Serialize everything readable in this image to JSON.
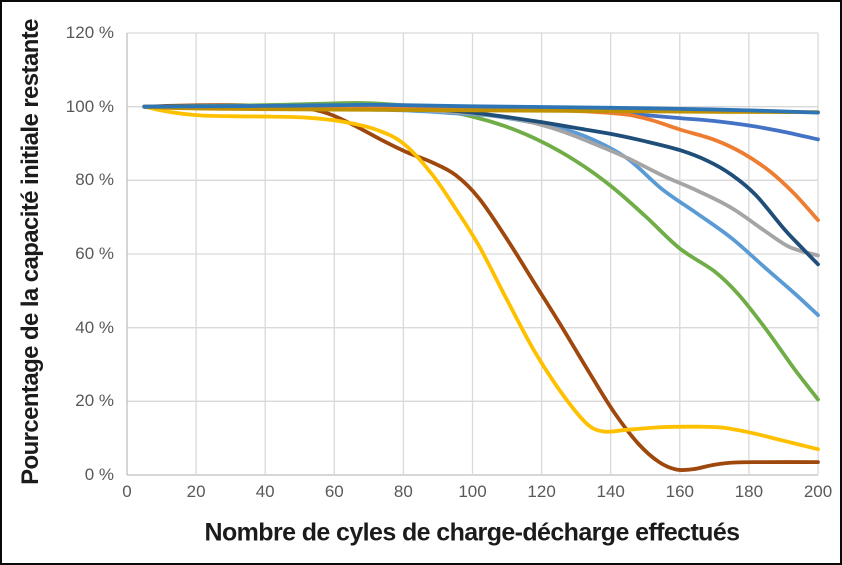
{
  "figure": {
    "x_axis_title": "Nombre de cyles de charge-décharge effectués",
    "y_axis_title": "Pourcentage de la capacité initiale restante"
  },
  "style": {
    "background": "#ffffff",
    "outer_border_color": "#0a0a0a",
    "grid_color": "#d9d9d9",
    "axis_line_color": "#bfbfbf",
    "tick_label_color": "#595959",
    "axis_title_color": "#1b1b1b"
  },
  "chart_data": {
    "type": "line",
    "title": "",
    "xlabel": "Nombre de cyles de charge-décharge effectués",
    "ylabel": "Pourcentage de la capacité initiale restante",
    "xlim": [
      0,
      200
    ],
    "ylim": [
      0,
      120
    ],
    "grid": true,
    "legend_position": "none",
    "x_ticks": [
      0,
      20,
      40,
      60,
      80,
      100,
      120,
      140,
      160,
      180,
      200
    ],
    "x_tick_labels": [
      "0",
      "20",
      "40",
      "60",
      "80",
      "100",
      "120",
      "140",
      "160",
      "180",
      "200"
    ],
    "y_ticks": [
      0,
      20,
      40,
      60,
      80,
      100,
      120
    ],
    "y_tick_labels": [
      "0 %",
      "20 %",
      "40 %",
      "60 %",
      "80 %",
      "100 %",
      "120 %"
    ],
    "line_width": 3.8,
    "series": [
      {
        "name": "brown",
        "color": "#9E480E",
        "points": [
          [
            5,
            100
          ],
          [
            15,
            100.3
          ],
          [
            30,
            100.4
          ],
          [
            42,
            100.2
          ],
          [
            50,
            99.8
          ],
          [
            58,
            98.2
          ],
          [
            66,
            94.8
          ],
          [
            74,
            90.8
          ],
          [
            81,
            87.6
          ],
          [
            88,
            85.0
          ],
          [
            95,
            81.5
          ],
          [
            102,
            75.0
          ],
          [
            110,
            64.0
          ],
          [
            118,
            52.0
          ],
          [
            126,
            40.0
          ],
          [
            134,
            27.5
          ],
          [
            141,
            17.0
          ],
          [
            148,
            8.5
          ],
          [
            154,
            3.5
          ],
          [
            159,
            1.5
          ],
          [
            164,
            1.6
          ],
          [
            170,
            2.8
          ],
          [
            176,
            3.4
          ],
          [
            185,
            3.5
          ],
          [
            200,
            3.5
          ]
        ]
      },
      {
        "name": "yellow",
        "color": "#FFC000",
        "points": [
          [
            5,
            100
          ],
          [
            12,
            98.6
          ],
          [
            20,
            97.7
          ],
          [
            30,
            97.4
          ],
          [
            42,
            97.3
          ],
          [
            52,
            97.0
          ],
          [
            62,
            96.0
          ],
          [
            72,
            93.8
          ],
          [
            80,
            90.0
          ],
          [
            88,
            82.0
          ],
          [
            95,
            72.5
          ],
          [
            102,
            62.0
          ],
          [
            110,
            47.5
          ],
          [
            118,
            33.5
          ],
          [
            126,
            22.0
          ],
          [
            133,
            14.0
          ],
          [
            138,
            11.8
          ],
          [
            145,
            12.3
          ],
          [
            155,
            13.0
          ],
          [
            165,
            13.1
          ],
          [
            172,
            12.9
          ],
          [
            180,
            11.6
          ],
          [
            190,
            9.3
          ],
          [
            200,
            7.0
          ]
        ]
      },
      {
        "name": "green",
        "color": "#70AD47",
        "points": [
          [
            5,
            100
          ],
          [
            25,
            100.2
          ],
          [
            45,
            100.5
          ],
          [
            60,
            100.9
          ],
          [
            68,
            101.0
          ],
          [
            78,
            100.5
          ],
          [
            88,
            99.5
          ],
          [
            100,
            97.3
          ],
          [
            110,
            94.5
          ],
          [
            120,
            90.5
          ],
          [
            130,
            85.2
          ],
          [
            140,
            78.5
          ],
          [
            150,
            70.3
          ],
          [
            160,
            61.5
          ],
          [
            170,
            55.3
          ],
          [
            177,
            49.0
          ],
          [
            185,
            39.5
          ],
          [
            193,
            29.0
          ],
          [
            200,
            20.5
          ]
        ]
      },
      {
        "name": "light-blue",
        "color": "#5B9BD5",
        "points": [
          [
            5,
            100
          ],
          [
            30,
            99.8
          ],
          [
            60,
            99.4
          ],
          [
            80,
            99.0
          ],
          [
            95,
            98.2
          ],
          [
            105,
            97.6
          ],
          [
            115,
            96.1
          ],
          [
            125,
            94.3
          ],
          [
            135,
            91.0
          ],
          [
            145,
            85.8
          ],
          [
            155,
            77.5
          ],
          [
            165,
            71.0
          ],
          [
            175,
            64.3
          ],
          [
            185,
            56.0
          ],
          [
            193,
            49.5
          ],
          [
            200,
            43.4
          ]
        ]
      },
      {
        "name": "gray",
        "color": "#A5A5A5",
        "points": [
          [
            5,
            100
          ],
          [
            30,
            99.9
          ],
          [
            60,
            99.7
          ],
          [
            80,
            99.3
          ],
          [
            95,
            98.5
          ],
          [
            105,
            97.7
          ],
          [
            115,
            96.2
          ],
          [
            125,
            93.6
          ],
          [
            135,
            90.0
          ],
          [
            145,
            86.0
          ],
          [
            155,
            81.3
          ],
          [
            165,
            77.2
          ],
          [
            175,
            72.5
          ],
          [
            185,
            66.0
          ],
          [
            192,
            61.8
          ],
          [
            200,
            59.6
          ]
        ]
      },
      {
        "name": "navy",
        "color": "#1F4E79",
        "points": [
          [
            5,
            100
          ],
          [
            30,
            100
          ],
          [
            60,
            100
          ],
          [
            80,
            99.6
          ],
          [
            90,
            99.2
          ],
          [
            100,
            98.4
          ],
          [
            110,
            97.2
          ],
          [
            120,
            95.8
          ],
          [
            130,
            94.2
          ],
          [
            140,
            92.6
          ],
          [
            150,
            90.6
          ],
          [
            160,
            88.2
          ],
          [
            168,
            85.3
          ],
          [
            175,
            81.5
          ],
          [
            182,
            76.0
          ],
          [
            190,
            67.0
          ],
          [
            195,
            62.0
          ],
          [
            200,
            57.2
          ]
        ]
      },
      {
        "name": "blue",
        "color": "#4472C4",
        "points": [
          [
            5,
            100
          ],
          [
            30,
            99.9
          ],
          [
            60,
            99.7
          ],
          [
            90,
            99.5
          ],
          [
            110,
            99.4
          ],
          [
            125,
            99.1
          ],
          [
            140,
            98.5
          ],
          [
            150,
            97.7
          ],
          [
            160,
            96.9
          ],
          [
            170,
            96.1
          ],
          [
            180,
            94.9
          ],
          [
            190,
            93.2
          ],
          [
            200,
            91.1
          ]
        ]
      },
      {
        "name": "orange",
        "color": "#ED7D31",
        "points": [
          [
            5,
            100
          ],
          [
            30,
            99.8
          ],
          [
            60,
            99.7
          ],
          [
            90,
            99.5
          ],
          [
            120,
            99.1
          ],
          [
            135,
            98.6
          ],
          [
            145,
            97.8
          ],
          [
            152,
            96.3
          ],
          [
            160,
            93.8
          ],
          [
            170,
            91.0
          ],
          [
            178,
            87.5
          ],
          [
            186,
            82.5
          ],
          [
            193,
            76.5
          ],
          [
            200,
            69.2
          ]
        ]
      },
      {
        "name": "dark-gold",
        "color": "#BF9000",
        "points": [
          [
            5,
            100
          ],
          [
            15,
            99.6
          ],
          [
            30,
            99.4
          ],
          [
            60,
            99.2
          ],
          [
            100,
            99.0
          ],
          [
            140,
            98.8
          ],
          [
            170,
            98.6
          ],
          [
            200,
            98.5
          ]
        ]
      },
      {
        "name": "medium-blue",
        "color": "#2E75B6",
        "points": [
          [
            5,
            100
          ],
          [
            20,
            100.1
          ],
          [
            40,
            100.2
          ],
          [
            60,
            100.4
          ],
          [
            70,
            100.5
          ],
          [
            80,
            100.4
          ],
          [
            100,
            100.1
          ],
          [
            120,
            99.9
          ],
          [
            140,
            99.7
          ],
          [
            160,
            99.4
          ],
          [
            180,
            99.0
          ],
          [
            200,
            98.4
          ]
        ]
      }
    ]
  }
}
